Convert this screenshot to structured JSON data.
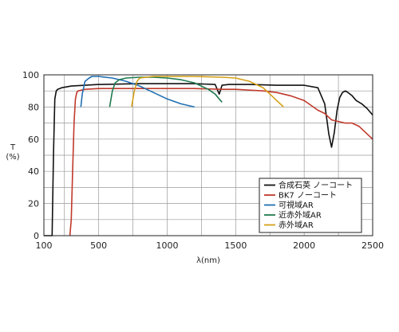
{
  "chart_data": {
    "type": "line",
    "title": "",
    "xlabel": "λ(nm)",
    "ylabel": "T (%)",
    "xlim": [
      100,
      2500
    ],
    "ylim": [
      0,
      100
    ],
    "xticks": [
      "100",
      "500",
      "1000",
      "1500",
      "2000",
      "2500"
    ],
    "xtick_values": [
      100,
      500,
      1000,
      1500,
      2000,
      2500
    ],
    "yticks": [
      "0",
      "20",
      "40",
      "60",
      "80",
      "100"
    ],
    "ytick_values": [
      0,
      20,
      40,
      60,
      80,
      100
    ],
    "grid": true,
    "legend_position": "bottom-right",
    "series": [
      {
        "name": "合成石英 ノーコート",
        "color": "#111111",
        "x": [
          100,
          160,
          170,
          180,
          190,
          200,
          230,
          300,
          500,
          800,
          1000,
          1200,
          1350,
          1380,
          1400,
          1450,
          1600,
          1800,
          2000,
          2100,
          2150,
          2180,
          2200,
          2220,
          2240,
          2260,
          2280,
          2300,
          2320,
          2350,
          2380,
          2420,
          2460,
          2500
        ],
        "y": [
          0,
          0,
          50,
          85,
          90,
          91,
          92,
          93,
          94,
          94.5,
          94.5,
          94.5,
          94,
          88,
          93.5,
          94,
          94,
          93.5,
          93.5,
          92,
          82,
          63,
          55,
          64,
          78,
          86,
          89,
          90,
          89,
          87,
          84,
          82,
          79,
          75
        ]
      },
      {
        "name": "BK7 ノーコート",
        "color": "#c0392b",
        "x": [
          290,
          300,
          310,
          320,
          330,
          340,
          350,
          400,
          500,
          800,
          1200,
          1400,
          1500,
          1600,
          1700,
          1800,
          1900,
          2000,
          2050,
          2100,
          2150,
          2200,
          2300,
          2350,
          2400,
          2450,
          2500
        ],
        "y": [
          0,
          10,
          40,
          70,
          85,
          89,
          90,
          91,
          91.5,
          91.5,
          91.5,
          91,
          91,
          90.5,
          90,
          89,
          87,
          84,
          81,
          78,
          76,
          72,
          70,
          70,
          68,
          64,
          60
        ]
      },
      {
        "name": "可視域AR",
        "color": "#1f6fb2",
        "x": [
          370,
          380,
          400,
          430,
          450,
          500,
          600,
          700,
          800,
          900,
          1000,
          1100,
          1200
        ],
        "y": [
          80,
          88,
          96,
          98,
          99,
          99,
          98,
          96,
          93,
          89,
          85,
          82,
          80
        ]
      },
      {
        "name": "近赤外域AR",
        "color": "#1f7a4f",
        "x": [
          580,
          600,
          620,
          650,
          700,
          800,
          900,
          1000,
          1100,
          1200,
          1300,
          1350,
          1380,
          1400
        ],
        "y": [
          80,
          90,
          95,
          97,
          98,
          98.5,
          98.5,
          98,
          97,
          95,
          91,
          88,
          85,
          83
        ]
      },
      {
        "name": "赤外域AR",
        "color": "#d4a017",
        "x": [
          740,
          760,
          780,
          800,
          900,
          1000,
          1200,
          1400,
          1500,
          1600,
          1700,
          1750,
          1800,
          1850
        ],
        "y": [
          80,
          90,
          96,
          98,
          99,
          99,
          99,
          98.5,
          98,
          96,
          92,
          88,
          84,
          80
        ]
      }
    ]
  }
}
